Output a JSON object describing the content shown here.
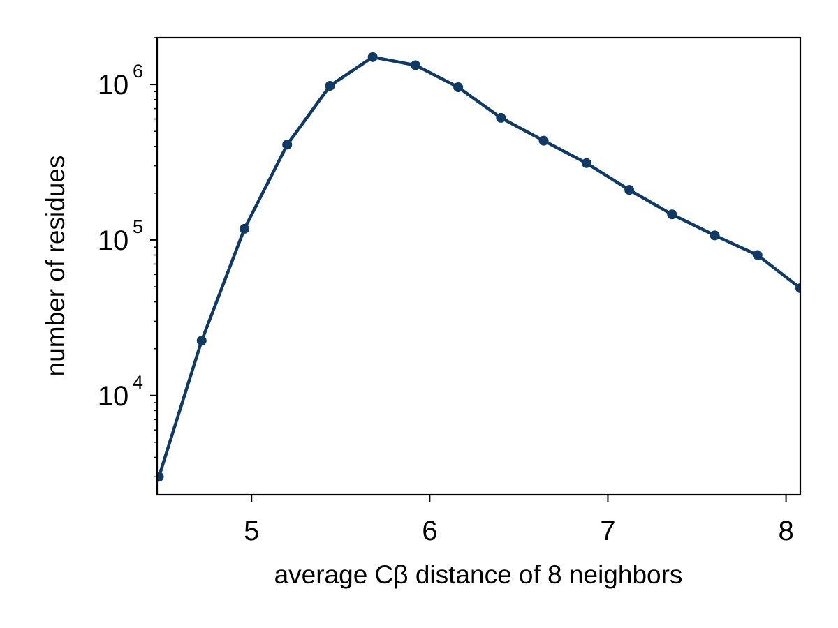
{
  "chart_data": {
    "type": "line",
    "xlabel": "average Cβ distance of 8 neighbors",
    "ylabel": "number of residues",
    "xlim": [
      4.47,
      8.08
    ],
    "ylim": [
      2300,
      2000000
    ],
    "yscale": "log",
    "grid": false,
    "x_ticks": [
      "5",
      "6",
      "7",
      "8"
    ],
    "y_ticks": [
      {
        "base": "10",
        "exponent": "4"
      },
      {
        "base": "10",
        "exponent": "5"
      },
      {
        "base": "10",
        "exponent": "6"
      }
    ],
    "series": [
      {
        "color": "#0f3a66",
        "marker": "circle",
        "x": [
          4.48,
          4.72,
          4.96,
          5.2,
          5.44,
          5.68,
          5.92,
          6.16,
          6.4,
          6.64,
          6.88,
          7.12,
          7.36,
          7.6,
          7.84,
          8.08
        ],
        "y": [
          3000,
          22500,
          118000,
          410000,
          980000,
          1500000,
          1330000,
          960000,
          610000,
          435000,
          312000,
          210000,
          146000,
          107000,
          80000,
          49000
        ]
      }
    ]
  }
}
